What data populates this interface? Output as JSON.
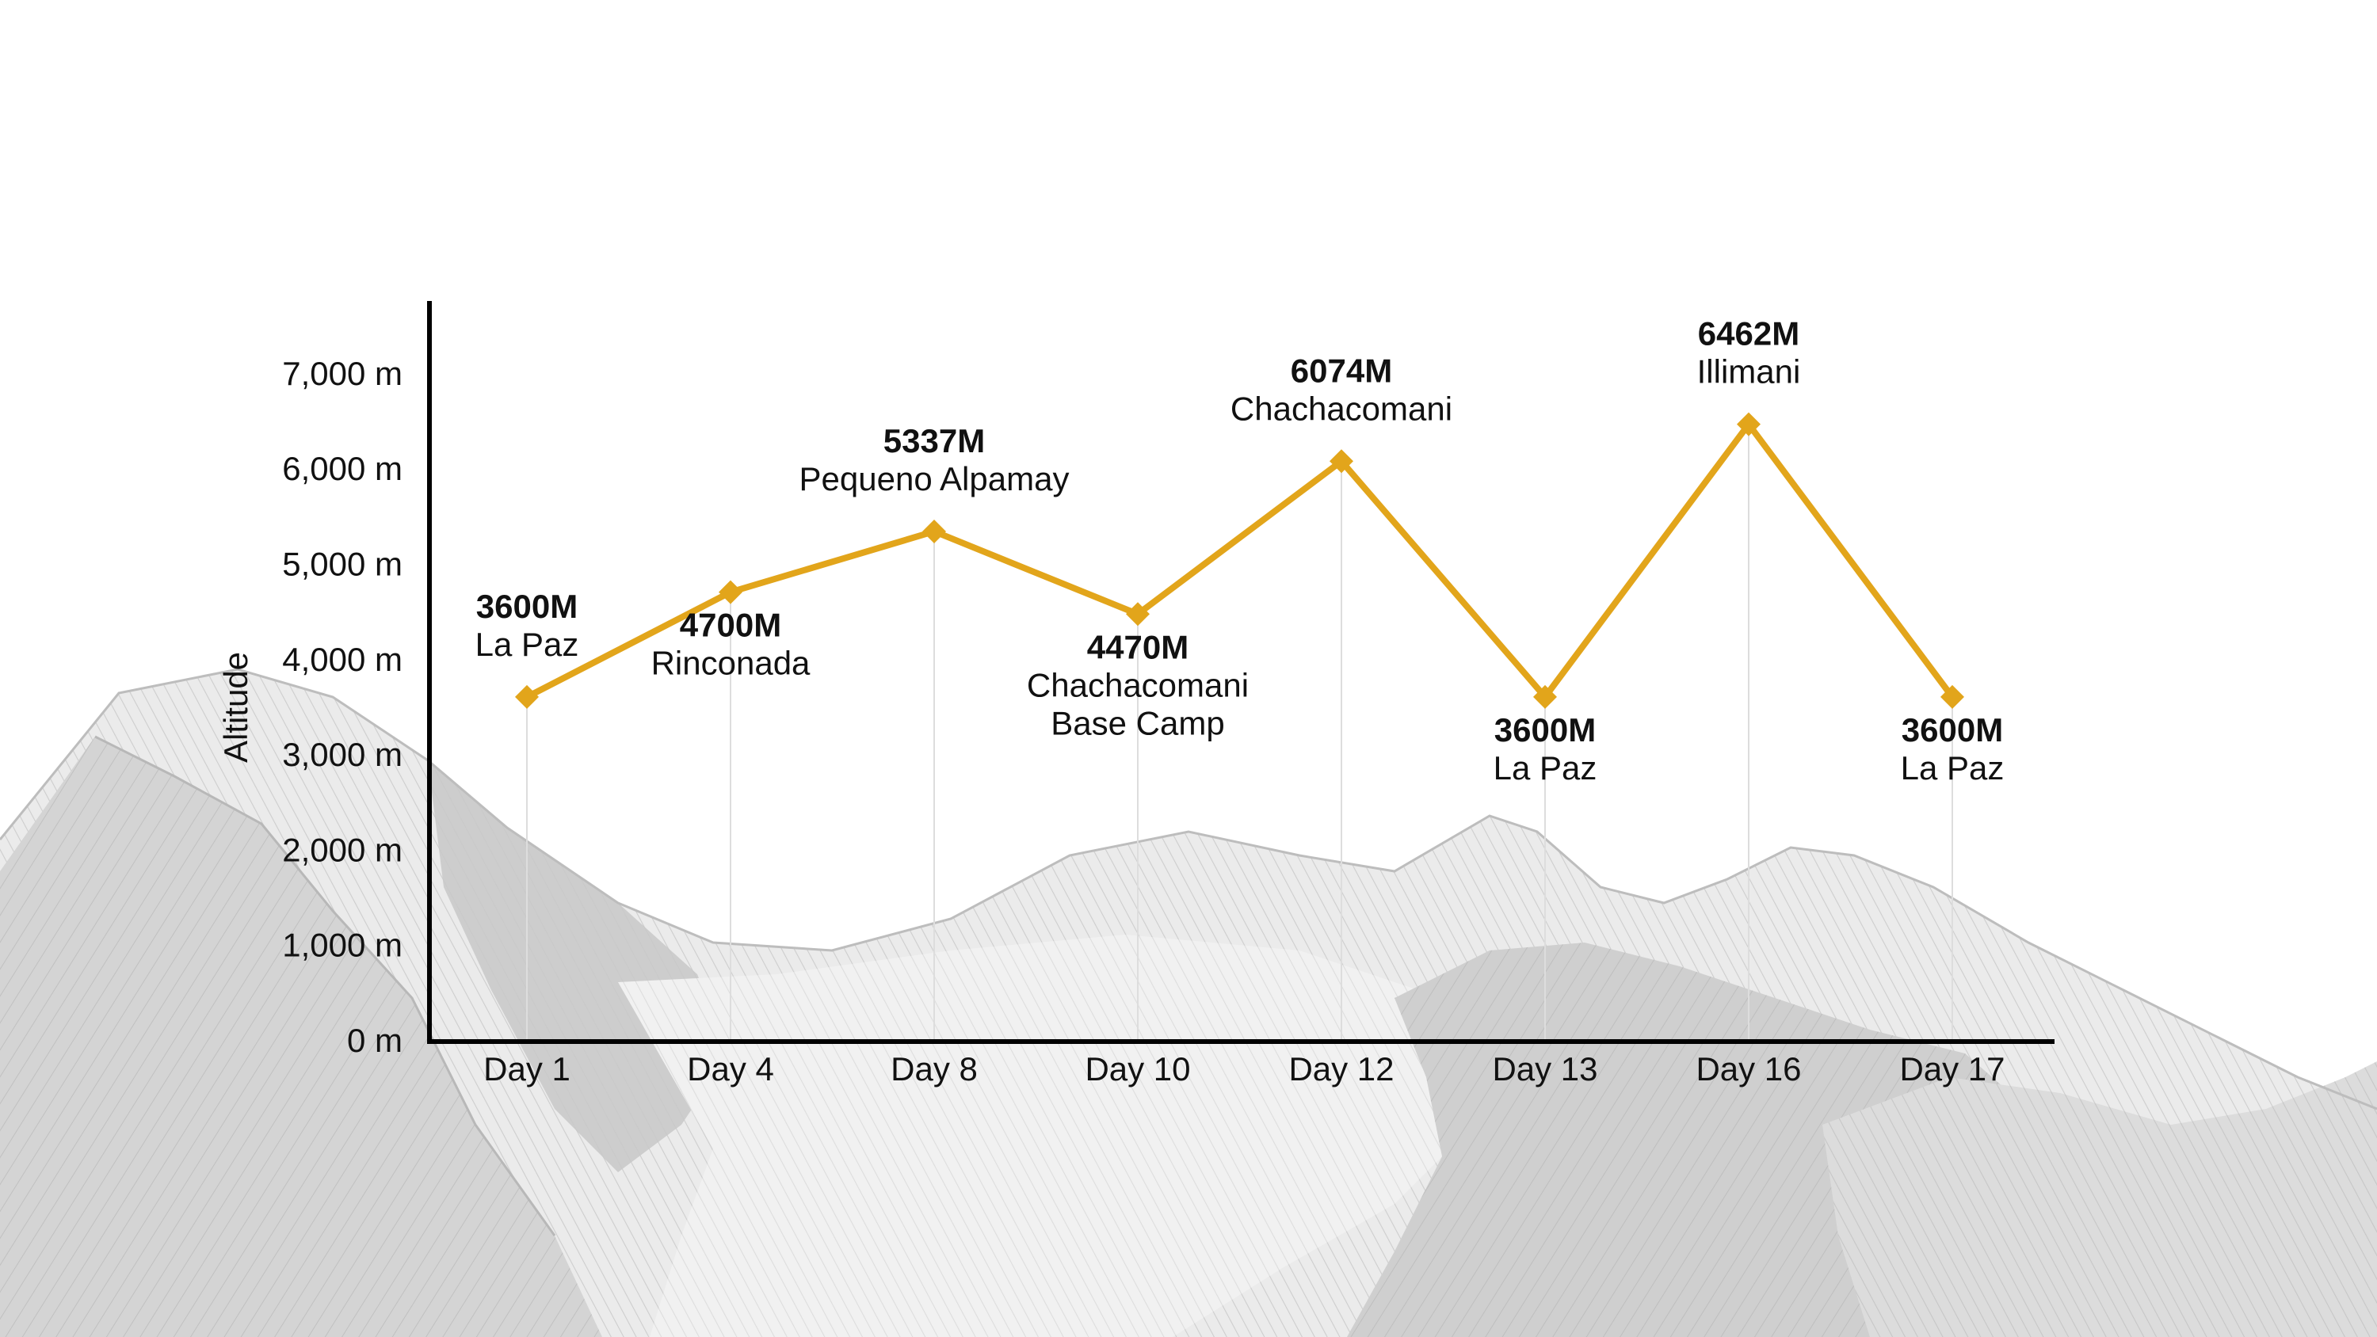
{
  "colors": {
    "line": "#E2A51B",
    "axis": "#000000",
    "guide": "#DDDDDD",
    "text": "#111111",
    "mountain_fill": "#E4E4E4",
    "mountain_shade": "#CCCCCC",
    "mountain_hatch": "#B4B4B4"
  },
  "chart_data": {
    "type": "line",
    "title": "",
    "xlabel": "",
    "ylabel": "Altitude",
    "ylim": [
      0,
      7800
    ],
    "yticks": [
      0,
      1000,
      2000,
      3000,
      4000,
      5000,
      6000,
      7000
    ],
    "ytick_labels": [
      "0 m",
      "1,000 m",
      "2,000 m",
      "3,000 m",
      "4,000 m",
      "5,000 m",
      "6,000 m",
      "7,000 m"
    ],
    "categories": [
      "Day 1",
      "Day 4",
      "Day 8",
      "Day 10",
      "Day 12",
      "Day 13",
      "Day 16",
      "Day 17"
    ],
    "series": [
      {
        "values": [
          3600,
          4700,
          5337,
          4470,
          6074,
          3600,
          6462,
          3600
        ]
      }
    ],
    "annotations": [
      {
        "value": "3600M",
        "place": [
          "La Paz"
        ],
        "position": "above"
      },
      {
        "value": "4700M",
        "place": [
          "Rinconada"
        ],
        "position": "below"
      },
      {
        "value": "5337M",
        "place": [
          "Pequeno Alpamay"
        ],
        "position": "above"
      },
      {
        "value": "4470M",
        "place": [
          "Chachacomani",
          "Base Camp"
        ],
        "position": "below"
      },
      {
        "value": "6074M",
        "place": [
          "Chachacomani"
        ],
        "position": "above"
      },
      {
        "value": "3600M",
        "place": [
          "La Paz"
        ],
        "position": "below"
      },
      {
        "value": "6462M",
        "place": [
          "Illimani"
        ],
        "position": "above"
      },
      {
        "value": "3600M",
        "place": [
          "La Paz"
        ],
        "position": "below"
      }
    ],
    "grid": false,
    "marker": "diamond",
    "vertical_guides": true
  }
}
